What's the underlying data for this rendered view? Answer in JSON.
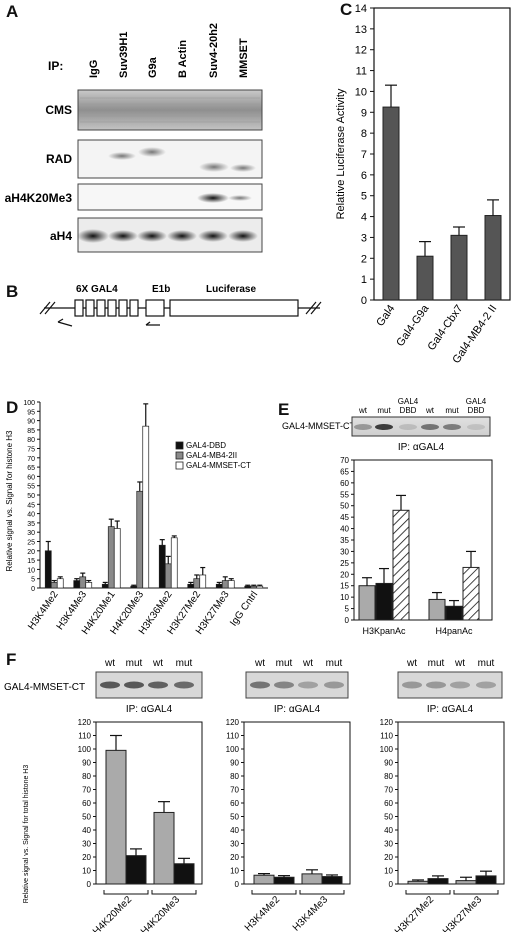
{
  "panels": {
    "A": {
      "letter": "A",
      "ip_label": "IP:",
      "lanes": [
        "IgG",
        "Suv39H1",
        "G9a",
        "B Actin",
        "Suv4-20h2",
        "MMSET"
      ],
      "rows": [
        "CMS",
        "RAD",
        "aH4K20Me3",
        "aH4"
      ]
    },
    "B": {
      "letter": "B",
      "label_gal4": "6X GAL4",
      "label_e1b": "E1b",
      "label_luc": "Luciferase"
    },
    "C": {
      "letter": "C",
      "chart_data": {
        "type": "bar",
        "ylabel": "Relative Luciferase  Activity",
        "ylim": [
          0,
          14
        ],
        "yticks": [
          0,
          1,
          2,
          3,
          4,
          5,
          6,
          7,
          8,
          9,
          10,
          11,
          12,
          13,
          14
        ],
        "categories": [
          "Gal4",
          "Gal4-G9a",
          "Gal4-Cbx7",
          "Gal4-MB4-2 II"
        ],
        "values": [
          9.25,
          2.1,
          3.1,
          4.05
        ],
        "errors": [
          1.05,
          0.7,
          0.4,
          0.75
        ],
        "colors": [
          "#555555"
        ]
      }
    },
    "D": {
      "letter": "D",
      "chart_data": {
        "type": "bar",
        "ylabel": "Relative signal vs. Signal for histone H3",
        "ylim": [
          0,
          100
        ],
        "yticks": [
          0,
          5,
          10,
          15,
          20,
          25,
          30,
          35,
          40,
          45,
          50,
          55,
          60,
          65,
          70,
          75,
          80,
          85,
          90,
          95,
          100
        ],
        "categories": [
          "H3K4Me2",
          "H3K4Me3",
          "H4K20Me1",
          "H4K20Me3",
          "H3K36Me2",
          "H3K27Me2",
          "H3K27Me3",
          "IgG Cntrl"
        ],
        "series": [
          {
            "name": "GAL4-DBD",
            "values": [
              20,
              4,
              2,
              1,
              23,
              2,
              2,
              1
            ],
            "errors": [
              5,
              1,
              1,
              0.5,
              3,
              1,
              1,
              0.5
            ],
            "color": "#111111"
          },
          {
            "name": "GAL4-MB4-2II",
            "values": [
              3,
              6,
              33,
              52,
              13,
              5,
              4,
              1
            ],
            "errors": [
              1,
              2,
              4,
              5,
              4,
              2,
              2,
              0.5
            ],
            "color": "#8a8a8a"
          },
          {
            "name": "GAL4-MMSET-CT",
            "values": [
              5,
              3,
              32,
              87,
              27,
              7,
              4,
              1
            ],
            "errors": [
              1,
              1,
              4,
              12,
              1,
              4,
              1,
              0.5
            ],
            "color": "#ffffff"
          }
        ]
      }
    },
    "E": {
      "letter": "E",
      "blot_label": "GAL4-MMSET-CT",
      "lanes": [
        "wt",
        "mut",
        "GAL4\nDBD",
        "wt",
        "mut",
        "GAL4\nDBD"
      ],
      "ip_text": "IP: αGAL4",
      "chart_data": {
        "type": "bar",
        "ylim": [
          0,
          70
        ],
        "yticks": [
          0,
          5,
          10,
          15,
          20,
          25,
          30,
          35,
          40,
          45,
          50,
          55,
          60,
          65,
          70
        ],
        "categories": [
          "H3KpanAc",
          "H4panAc"
        ],
        "series": [
          {
            "name": "wt",
            "values": [
              15,
              9
            ],
            "errors": [
              3.5,
              3
            ],
            "color": "#aaaaaa"
          },
          {
            "name": "mut",
            "values": [
              16,
              6
            ],
            "errors": [
              6.5,
              2.5
            ],
            "color": "#111111"
          },
          {
            "name": "GAL4 DBD",
            "values": [
              48,
              23
            ],
            "errors": [
              6.5,
              7
            ],
            "color": "hatched"
          }
        ]
      }
    },
    "F": {
      "letter": "F",
      "blot_label": "GAL4-MMSET-CT",
      "lanes": [
        "wt",
        "mut",
        "wt",
        "mut"
      ],
      "ip_text": "IP: αGAL4",
      "ylabel": "Relative signal vs. Signal for total histone H3",
      "chart_data": [
        {
          "type": "bar",
          "ylim": [
            0,
            120
          ],
          "yticks": [
            0,
            10,
            20,
            30,
            40,
            50,
            60,
            70,
            80,
            90,
            100,
            110,
            120
          ],
          "categories": [
            "H4K20Me2",
            "H4K20Me3"
          ],
          "series": [
            {
              "name": "wt",
              "values": [
                99,
                53
              ],
              "errors": [
                11,
                8
              ],
              "color": "#aaaaaa"
            },
            {
              "name": "mut",
              "values": [
                21,
                15
              ],
              "errors": [
                5,
                4
              ],
              "color": "#111111"
            }
          ]
        },
        {
          "type": "bar",
          "ylim": [
            0,
            120
          ],
          "yticks": [
            0,
            10,
            20,
            30,
            40,
            50,
            60,
            70,
            80,
            90,
            100,
            110,
            120
          ],
          "categories": [
            "H3K4Me2",
            "H3K4Me3"
          ],
          "series": [
            {
              "name": "wt",
              "values": [
                6.5,
                7.5
              ],
              "errors": [
                1.2,
                3
              ],
              "color": "#aaaaaa"
            },
            {
              "name": "mut",
              "values": [
                5,
                5.5
              ],
              "errors": [
                1.2,
                1.2
              ],
              "color": "#111111"
            }
          ]
        },
        {
          "type": "bar",
          "ylim": [
            0,
            120
          ],
          "yticks": [
            0,
            10,
            20,
            30,
            40,
            50,
            60,
            70,
            80,
            90,
            100,
            110,
            120
          ],
          "categories": [
            "H3K27Me2",
            "H3K27Me3"
          ],
          "series": [
            {
              "name": "wt",
              "values": [
                2,
                2.5
              ],
              "errors": [
                1,
                2.5
              ],
              "color": "#aaaaaa"
            },
            {
              "name": "mut",
              "values": [
                4,
                6
              ],
              "errors": [
                2,
                3.5
              ],
              "color": "#111111"
            }
          ]
        }
      ]
    }
  }
}
